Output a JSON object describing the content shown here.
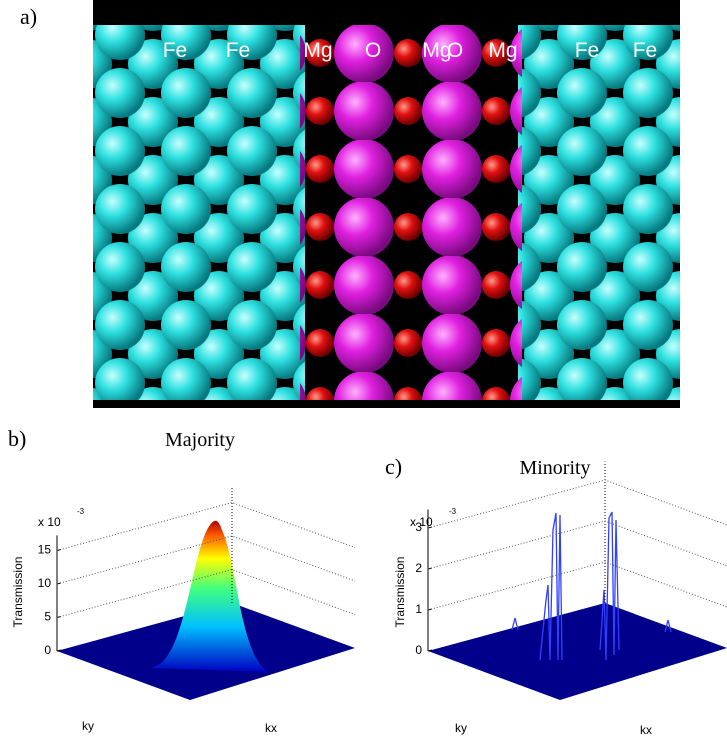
{
  "panels": {
    "a": {
      "label": "a)",
      "atoms": [
        "Fe",
        "Fe",
        "Mg",
        "O",
        "Mg",
        "O",
        "Mg",
        "Fe",
        "Fe"
      ]
    },
    "b": {
      "label": "b)",
      "title": "Majority",
      "scale_base": "x 10",
      "scale_exponent": "-3",
      "zlabel": "Transmission",
      "zticks": [
        0,
        5,
        10,
        15
      ],
      "xlabel": "kx",
      "ylabel": "ky"
    },
    "c": {
      "label": "c)",
      "title": "Minority",
      "scale_base": "x 10",
      "scale_exponent": "-3",
      "zlabel": "Transmission",
      "zticks": [
        0,
        1,
        2,
        3
      ],
      "xlabel": "kx",
      "ylabel": "ky"
    }
  }
}
